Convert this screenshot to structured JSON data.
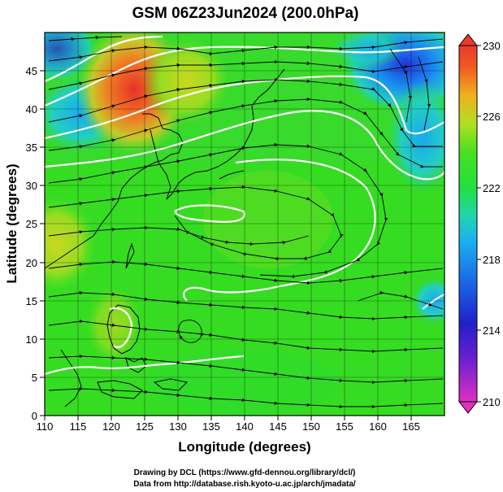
{
  "title": "GSM 06Z23Jun2024 (200.0hPa)",
  "xlabel": "Longitude (degrees)",
  "ylabel": "Latitude  (degrees)",
  "credit_line1": "Drawing by DCL (https://www.gfd-dennou.org/library/dcl/)",
  "credit_line2": "Data from http://database.rish.kyoto-u.ac.jp/arch/jmadata/",
  "chart_data": {
    "type": "heatmap",
    "xlim": [
      110,
      170
    ],
    "ylim": [
      0,
      50
    ],
    "x_ticks": [
      "110",
      "115",
      "120",
      "125",
      "130",
      "135",
      "140",
      "145",
      "150",
      "155",
      "160",
      "165"
    ],
    "y_ticks": [
      "0",
      "5",
      "10",
      "15",
      "20",
      "25",
      "30",
      "35",
      "40",
      "45"
    ],
    "colorbar": {
      "min": 210,
      "max": 230,
      "ticks": [
        "230",
        "226",
        "222",
        "218",
        "214",
        "210"
      ],
      "colors": [
        "#d633c8",
        "#2a16c8",
        "#1a9cf0",
        "#25d4b0",
        "#26e61c",
        "#b8e61c",
        "#f0b020",
        "#f25a1e",
        "#e83a2a"
      ]
    },
    "grid": true,
    "features": [
      "temperature-shading",
      "streamlines",
      "contours",
      "coastlines"
    ]
  }
}
